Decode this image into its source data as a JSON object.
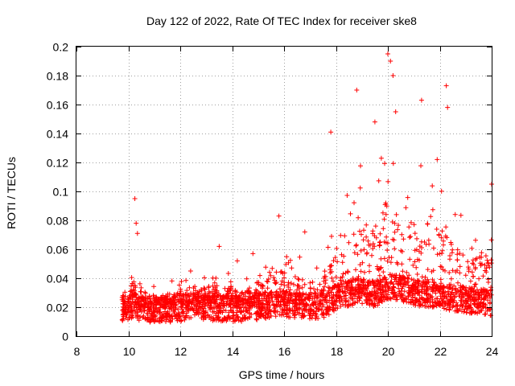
{
  "chart_data": {
    "type": "scatter",
    "title": "Day 122 of 2022, Rate Of TEC Index for receiver ske8",
    "xlabel": "GPS time / hours",
    "ylabel": "ROTI / TECUs",
    "xlim": [
      8,
      24
    ],
    "ylim": [
      0,
      0.2
    ],
    "x_ticks": [
      8,
      10,
      12,
      14,
      16,
      18,
      20,
      22,
      24
    ],
    "x_tick_labels": [
      "8",
      "10",
      "12",
      "14",
      "16",
      "18",
      "20",
      "22",
      "24"
    ],
    "y_ticks": [
      0,
      0.02,
      0.04,
      0.06,
      0.08,
      0.1,
      0.12,
      0.14,
      0.16,
      0.18,
      0.2
    ],
    "y_tick_labels": [
      "0",
      "0.02",
      "0.04",
      "0.06",
      "0.08",
      "0.1",
      "0.12",
      "0.14",
      "0.16",
      "0.18",
      "0.2"
    ],
    "grid": true,
    "marker": "+",
    "series": [
      {
        "name": "ROTI",
        "color": "#ff0000",
        "envelope": [
          {
            "x": 9.75,
            "base": 0.02,
            "spread": 0.018
          },
          {
            "x": 10.2,
            "base": 0.022,
            "spread": 0.03
          },
          {
            "x": 10.5,
            "base": 0.02,
            "spread": 0.025
          },
          {
            "x": 11.0,
            "base": 0.019,
            "spread": 0.016
          },
          {
            "x": 12.0,
            "base": 0.02,
            "spread": 0.02
          },
          {
            "x": 12.5,
            "base": 0.022,
            "spread": 0.022
          },
          {
            "x": 13.5,
            "base": 0.02,
            "spread": 0.025
          },
          {
            "x": 14.5,
            "base": 0.02,
            "spread": 0.022
          },
          {
            "x": 15.0,
            "base": 0.021,
            "spread": 0.03
          },
          {
            "x": 15.8,
            "base": 0.024,
            "spread": 0.04
          },
          {
            "x": 16.5,
            "base": 0.022,
            "spread": 0.035
          },
          {
            "x": 17.5,
            "base": 0.022,
            "spread": 0.03
          },
          {
            "x": 18.0,
            "base": 0.028,
            "spread": 0.06
          },
          {
            "x": 18.8,
            "base": 0.032,
            "spread": 0.09
          },
          {
            "x": 19.5,
            "base": 0.03,
            "spread": 0.08
          },
          {
            "x": 20.0,
            "base": 0.035,
            "spread": 0.11
          },
          {
            "x": 20.5,
            "base": 0.034,
            "spread": 0.08
          },
          {
            "x": 21.3,
            "base": 0.03,
            "spread": 0.09
          },
          {
            "x": 22.0,
            "base": 0.03,
            "spread": 0.08
          },
          {
            "x": 22.3,
            "base": 0.028,
            "spread": 0.09
          },
          {
            "x": 23.0,
            "base": 0.026,
            "spread": 0.05
          },
          {
            "x": 24.0,
            "base": 0.024,
            "spread": 0.06
          }
        ],
        "spikes": [
          {
            "x": 10.25,
            "y": 0.095
          },
          {
            "x": 10.3,
            "y": 0.078
          },
          {
            "x": 10.35,
            "y": 0.071
          },
          {
            "x": 12.4,
            "y": 0.045
          },
          {
            "x": 13.5,
            "y": 0.062
          },
          {
            "x": 14.2,
            "y": 0.052
          },
          {
            "x": 14.8,
            "y": 0.057
          },
          {
            "x": 15.8,
            "y": 0.083
          },
          {
            "x": 16.8,
            "y": 0.072
          },
          {
            "x": 17.8,
            "y": 0.141
          },
          {
            "x": 18.8,
            "y": 0.17
          },
          {
            "x": 19.5,
            "y": 0.148
          },
          {
            "x": 20.0,
            "y": 0.195
          },
          {
            "x": 20.1,
            "y": 0.19
          },
          {
            "x": 20.2,
            "y": 0.18
          },
          {
            "x": 20.3,
            "y": 0.155
          },
          {
            "x": 21.3,
            "y": 0.163
          },
          {
            "x": 22.25,
            "y": 0.173
          },
          {
            "x": 22.3,
            "y": 0.158
          },
          {
            "x": 21.9,
            "y": 0.122
          },
          {
            "x": 24.0,
            "y": 0.105
          }
        ]
      }
    ]
  }
}
